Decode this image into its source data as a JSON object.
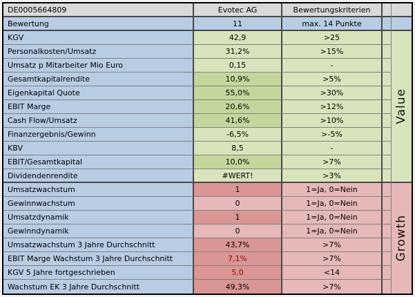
{
  "table": {
    "header_row": {
      "isin": "DE0005664809",
      "company": "Evotec AG",
      "criteria": "Bewertungskriterien"
    },
    "score_row": {
      "label": "Bewertung",
      "value": "11",
      "criteria": "max. 14 Punkte"
    },
    "value_section": {
      "band_label": "Value",
      "rows": [
        {
          "label": "KGV",
          "value": "42,9",
          "criteria": ">25",
          "scored": false,
          "value_red": false
        },
        {
          "label": "Personalkosten/Umsatz",
          "value": "31,2%",
          "criteria": ">15%",
          "scored": false,
          "value_red": false
        },
        {
          "label": "Umsatz p Mitarbeiter Mio Euro",
          "value": "0,15",
          "criteria": "-",
          "scored": false,
          "value_red": false
        },
        {
          "label": "Gesamtkapitalrendite",
          "value": "10,9%",
          "criteria": ">5%",
          "scored": true,
          "value_red": false
        },
        {
          "label": "Eigenkapital Quote",
          "value": "55,0%",
          "criteria": ">30%",
          "scored": true,
          "value_red": false
        },
        {
          "label": "EBIT Marge",
          "value": "20,6%",
          "criteria": ">12%",
          "scored": true,
          "value_red": false
        },
        {
          "label": "Cash Flow/Umsatz",
          "value": "41,6%",
          "criteria": ">10%",
          "scored": true,
          "value_red": false
        },
        {
          "label": "Finanzergebnis/Gewinn",
          "value": "-6,5%",
          "criteria": ">-5%",
          "scored": false,
          "value_red": false
        },
        {
          "label": "KBV",
          "value": "8,5",
          "criteria": "-",
          "scored": false,
          "value_red": false
        },
        {
          "label": "EBIT/Gesamtkapital",
          "value": "10,0%",
          "criteria": ">7%",
          "scored": true,
          "value_red": false
        },
        {
          "label": "Dividendenrendite",
          "value": "#WERT!",
          "criteria": ">3%",
          "scored": false,
          "value_red": false
        }
      ]
    },
    "growth_section": {
      "band_label": "Growth",
      "rows": [
        {
          "label": "Umsatzwachstum",
          "value": "1",
          "criteria": "1=Ja, 0=Nein",
          "scored": true,
          "value_red": false
        },
        {
          "label": "Gewinnwachstum",
          "value": "0",
          "criteria": "1=Ja, 0=Nein",
          "scored": false,
          "value_red": false
        },
        {
          "label": "Umsatzdynamik",
          "value": "1",
          "criteria": "1=Ja, 0=Nein",
          "scored": true,
          "value_red": false
        },
        {
          "label": "Gewinndynamik",
          "value": "0",
          "criteria": "1=Ja, 0=Nein",
          "scored": false,
          "value_red": false
        },
        {
          "label": "Umsatzwachstum 3 Jahre Durchschnitt",
          "value": "43,7%",
          "criteria": ">7%",
          "scored": true,
          "value_red": false
        },
        {
          "label": "EBIT Marge Wachstum 3 Jahre Durchschnitt",
          "value": "7,1%",
          "criteria": ">7%",
          "scored": true,
          "value_red": true
        },
        {
          "label": "KGV 5 Jahre fortgeschrieben",
          "value": "5,0",
          "criteria": "<14",
          "scored": true,
          "value_red": true
        },
        {
          "label": "Wachstum EK 3 Jahre Durchschnitt",
          "value": "49,3%",
          "criteria": ">7%",
          "scored": true,
          "value_red": false
        }
      ]
    },
    "colors": {
      "header_bg": "#d9d9d9",
      "label_bg": "#b8cce4",
      "value_light_bg": "#d8e4bc",
      "value_scored_bg": "#c4d79b",
      "growth_light_bg": "#e6b8b7",
      "growth_scored_bg": "#d99694",
      "red_text": "#9c0006",
      "gridline": "#808080",
      "section_border": "#474747"
    }
  }
}
